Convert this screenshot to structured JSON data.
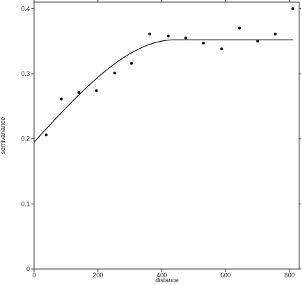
{
  "chart_data": {
    "type": "scatter",
    "title": "",
    "xlabel": "distance",
    "ylabel": "semivariance",
    "xlim": [
      0,
      830
    ],
    "ylim": [
      0,
      0.41
    ],
    "x_ticks": [
      0,
      200,
      400,
      600,
      800
    ],
    "x_tick_labels": [
      "0",
      "200",
      "400",
      "600",
      "800"
    ],
    "y_ticks": [
      0,
      0.1,
      0.2,
      0.3,
      0.4
    ],
    "y_tick_labels": [
      "0",
      "0.1",
      "0.2",
      "0.3",
      "0.4"
    ],
    "grid": false,
    "series": [
      {
        "kind": "points",
        "x": [
          38,
          85,
          140,
          195,
          252,
          305,
          362,
          420,
          475,
          530,
          587,
          643,
          700,
          755,
          810
        ],
        "y": [
          0.206,
          0.261,
          0.271,
          0.274,
          0.301,
          0.316,
          0.361,
          0.358,
          0.355,
          0.347,
          0.338,
          0.37,
          0.35,
          0.361,
          0.4
        ],
        "color": "#000000"
      },
      {
        "kind": "fitted-curve",
        "model": "spherical",
        "nugget": 0.195,
        "sill": 0.352,
        "range": 440,
        "x_max": 810,
        "color": "#000000"
      }
    ]
  }
}
